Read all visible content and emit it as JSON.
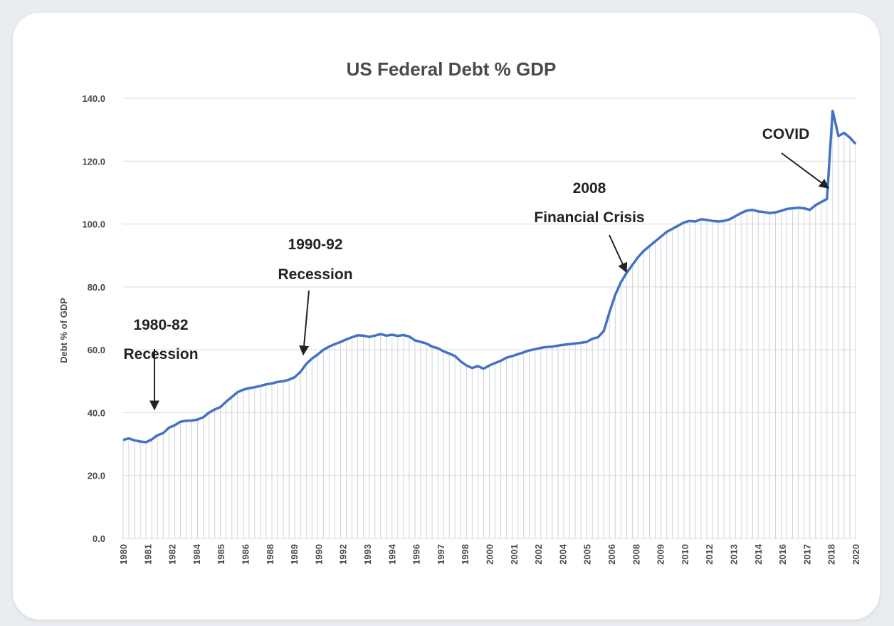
{
  "colors": {
    "line": "#4472c4",
    "grid": "#d9d9d9",
    "fill_lines": "#cdd3dc",
    "text": "#4a4a4a",
    "annotation": "#222222"
  },
  "chart_data": {
    "type": "line",
    "title": "US Federal Debt % GDP",
    "xlabel": "",
    "ylabel": "Debt % of GDP",
    "ylim": [
      0,
      140
    ],
    "yticks": [
      "0.0",
      "20.0",
      "40.0",
      "60.0",
      "80.0",
      "100.0",
      "120.0",
      "140.0"
    ],
    "x_tick_labels": [
      "1980",
      "1981",
      "1982",
      "1984",
      "1985",
      "1986",
      "1988",
      "1989",
      "1990",
      "1992",
      "1993",
      "1994",
      "1996",
      "1997",
      "1998",
      "2000",
      "2001",
      "2002",
      "2004",
      "2005",
      "2006",
      "2008",
      "2009",
      "2010",
      "2012",
      "2013",
      "2014",
      "2016",
      "2017",
      "2018",
      "2020"
    ],
    "grid": true,
    "legend": "none",
    "series": [
      {
        "values": [
          31.3,
          31.8,
          31.2,
          30.8,
          30.6,
          31.5,
          32.8,
          33.5,
          35.2,
          36.0,
          37.1,
          37.4,
          37.5,
          37.8,
          38.5,
          40.0,
          41.0,
          41.8,
          43.5,
          45.0,
          46.5,
          47.3,
          47.8,
          48.1,
          48.5,
          49.0,
          49.3,
          49.8,
          50.0,
          50.5,
          51.3,
          53.0,
          55.5,
          57.2,
          58.5,
          60.0,
          61.0,
          61.8,
          62.5,
          63.3,
          64.0,
          64.6,
          64.5,
          64.1,
          64.5,
          65.0,
          64.5,
          64.8,
          64.4,
          64.7,
          64.2,
          63.0,
          62.5,
          62.0,
          61.0,
          60.5,
          59.5,
          58.8,
          58.0,
          56.3,
          55.0,
          54.2,
          54.8,
          54.0,
          55.0,
          55.8,
          56.5,
          57.5,
          58.0,
          58.6,
          59.2,
          59.8,
          60.2,
          60.6,
          60.9,
          61.0,
          61.3,
          61.6,
          61.8,
          62.0,
          62.2,
          62.5,
          63.5,
          64.0,
          66.0,
          72.0,
          77.5,
          81.5,
          84.5,
          87.0,
          89.5,
          91.5,
          93.0,
          94.5,
          96.0,
          97.5,
          98.5,
          99.5,
          100.5,
          101.0,
          100.8,
          101.5,
          101.3,
          101.0,
          100.8,
          101.0,
          101.5,
          102.5,
          103.5,
          104.3,
          104.5,
          104.0,
          103.8,
          103.5,
          103.7,
          104.2,
          104.8,
          105.0,
          105.2,
          105.0,
          104.5,
          106.0,
          107.0,
          108.0,
          136.0,
          128.0,
          129.0,
          127.5,
          125.5
        ]
      }
    ],
    "annotations": [
      {
        "lines": [
          "1980-82",
          "Recession"
        ],
        "point_index": 5
      },
      {
        "lines": [
          "1990-92",
          "Recession"
        ],
        "point_index": 33
      },
      {
        "lines": [
          "2008",
          "Financial Crisis"
        ],
        "point_index": 86
      },
      {
        "lines": [
          "COVID"
        ],
        "point_index": 123
      }
    ]
  }
}
